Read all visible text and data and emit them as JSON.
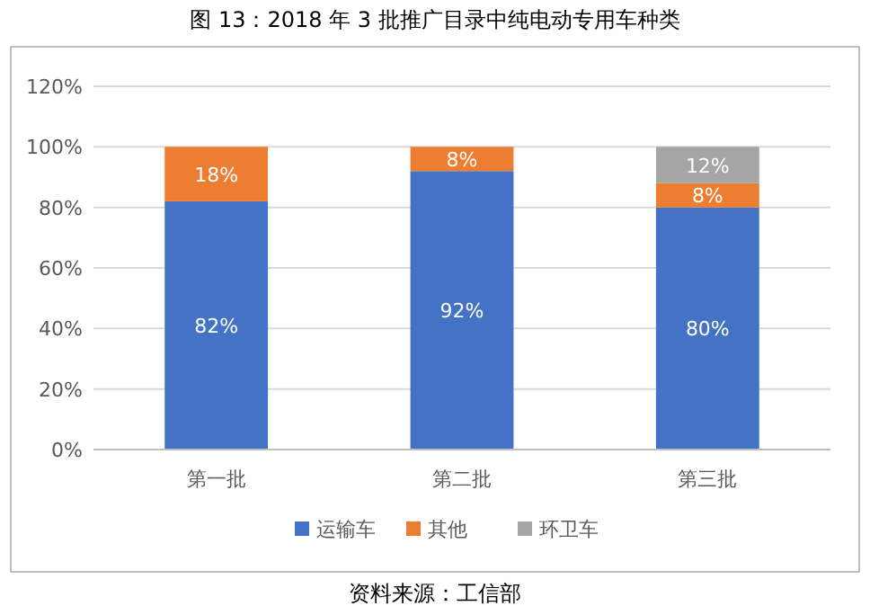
{
  "chart_data": {
    "type": "bar",
    "title": "图 13：2018 年 3 批推广目录中纯电动专用车种类",
    "categories": [
      "第一批",
      "第二批",
      "第三批"
    ],
    "stacked": true,
    "series": [
      {
        "name": "运输车",
        "color": "#4472c4",
        "values": [
          82,
          92,
          80
        ],
        "value_labels": [
          "82%",
          "92%",
          "80%"
        ]
      },
      {
        "name": "其他",
        "color": "#ed7d31",
        "values": [
          18,
          8,
          8
        ],
        "value_labels": [
          "18%",
          "8%",
          "8%"
        ]
      },
      {
        "name": "环卫车",
        "color": "#a5a5a5",
        "values": [
          null,
          null,
          12
        ],
        "value_labels": [
          null,
          null,
          "12%"
        ]
      }
    ],
    "ylim": [
      0,
      120
    ],
    "yticks": [
      {
        "value": 0,
        "label": "0%"
      },
      {
        "value": 20,
        "label": "20%"
      },
      {
        "value": 40,
        "label": "40%"
      },
      {
        "value": 60,
        "label": "60%"
      },
      {
        "value": 80,
        "label": "80%"
      },
      {
        "value": 100,
        "label": "100%"
      },
      {
        "value": 120,
        "label": "120%"
      }
    ],
    "grid": "y",
    "legend": "bottom",
    "annotations": [
      "资料来源：工信部"
    ]
  }
}
